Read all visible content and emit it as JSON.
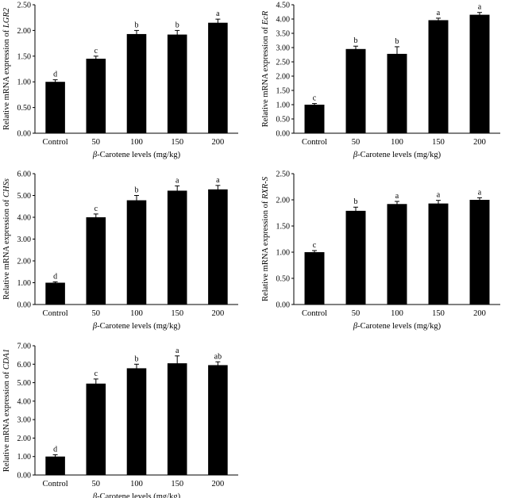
{
  "chart_data": [
    {
      "type": "bar",
      "title": "",
      "ylabel_prefix": "Relative mRNA expression of ",
      "ylabel_gene": "LGR2",
      "xlabel_beta": "β",
      "xlabel_rest": "-Carotene levels (mg/kg)",
      "categories": [
        "Control",
        "50",
        "100",
        "150",
        "200"
      ],
      "values": [
        1.0,
        1.45,
        1.93,
        1.92,
        2.15
      ],
      "errors": [
        0.04,
        0.05,
        0.07,
        0.08,
        0.07
      ],
      "significance": [
        "d",
        "c",
        "b",
        "b",
        "a"
      ],
      "ylim": [
        0,
        2.5
      ],
      "yticks": [
        "0.00",
        "0.50",
        "1.00",
        "1.50",
        "2.00",
        "2.50"
      ],
      "bar_color": "#000000",
      "grid": false
    },
    {
      "type": "bar",
      "title": "",
      "ylabel_prefix": "Relative mRNA expression of ",
      "ylabel_gene": "EcR",
      "xlabel_beta": "β",
      "xlabel_rest": "-Carotene levels (mg/kg)",
      "categories": [
        "Control",
        "50",
        "100",
        "150",
        "200"
      ],
      "values": [
        1.0,
        2.95,
        2.78,
        3.96,
        4.15
      ],
      "errors": [
        0.04,
        0.1,
        0.25,
        0.07,
        0.08
      ],
      "significance": [
        "c",
        "b",
        "b",
        "a",
        "a"
      ],
      "ylim": [
        0,
        4.5
      ],
      "yticks": [
        "0.00",
        "0.50",
        "1.00",
        "1.50",
        "2.00",
        "2.50",
        "3.00",
        "3.50",
        "4.00",
        "4.50"
      ],
      "bar_color": "#000000",
      "grid": false
    },
    {
      "type": "bar",
      "title": "",
      "ylabel_prefix": "Relative mRNA expression of ",
      "ylabel_gene": "CHSs",
      "xlabel_beta": "β",
      "xlabel_rest": "-Carotene levels (mg/kg)",
      "categories": [
        "Control",
        "50",
        "100",
        "150",
        "200"
      ],
      "values": [
        1.0,
        4.0,
        4.78,
        5.22,
        5.28
      ],
      "errors": [
        0.04,
        0.15,
        0.22,
        0.22,
        0.18
      ],
      "significance": [
        "d",
        "c",
        "b",
        "a",
        "a"
      ],
      "ylim": [
        0,
        6
      ],
      "yticks": [
        "0.00",
        "1.00",
        "2.00",
        "3.00",
        "4.00",
        "5.00",
        "6.00"
      ],
      "bar_color": "#000000",
      "grid": false
    },
    {
      "type": "bar",
      "title": "",
      "ylabel_prefix": "Relative mRNA expression of ",
      "ylabel_gene": "RXR-S",
      "xlabel_beta": "β",
      "xlabel_rest": "-Carotene levels (mg/kg)",
      "categories": [
        "Control",
        "50",
        "100",
        "150",
        "200"
      ],
      "values": [
        1.0,
        1.79,
        1.92,
        1.93,
        2.0
      ],
      "errors": [
        0.03,
        0.07,
        0.05,
        0.06,
        0.04
      ],
      "significance": [
        "c",
        "b",
        "a",
        "a",
        "a"
      ],
      "ylim": [
        0,
        2.5
      ],
      "yticks": [
        "0.00",
        "0.50",
        "1.00",
        "1.50",
        "2.00",
        "2.50"
      ],
      "bar_color": "#000000",
      "grid": false
    },
    {
      "type": "bar",
      "title": "",
      "ylabel_prefix": "Relative mRNA expression of ",
      "ylabel_gene": "CDA1",
      "xlabel_beta": "β",
      "xlabel_rest": "-Carotene levels (mg/kg)",
      "categories": [
        "Control",
        "50",
        "100",
        "150",
        "200"
      ],
      "values": [
        1.0,
        4.95,
        5.78,
        6.05,
        5.95
      ],
      "errors": [
        0.1,
        0.25,
        0.22,
        0.4,
        0.18
      ],
      "significance": [
        "d",
        "c",
        "b",
        "a",
        "ab"
      ],
      "ylim": [
        0,
        7
      ],
      "yticks": [
        "0.00",
        "1.00",
        "2.00",
        "3.00",
        "4.00",
        "5.00",
        "6.00",
        "7.00"
      ],
      "bar_color": "#000000",
      "grid": false
    }
  ]
}
